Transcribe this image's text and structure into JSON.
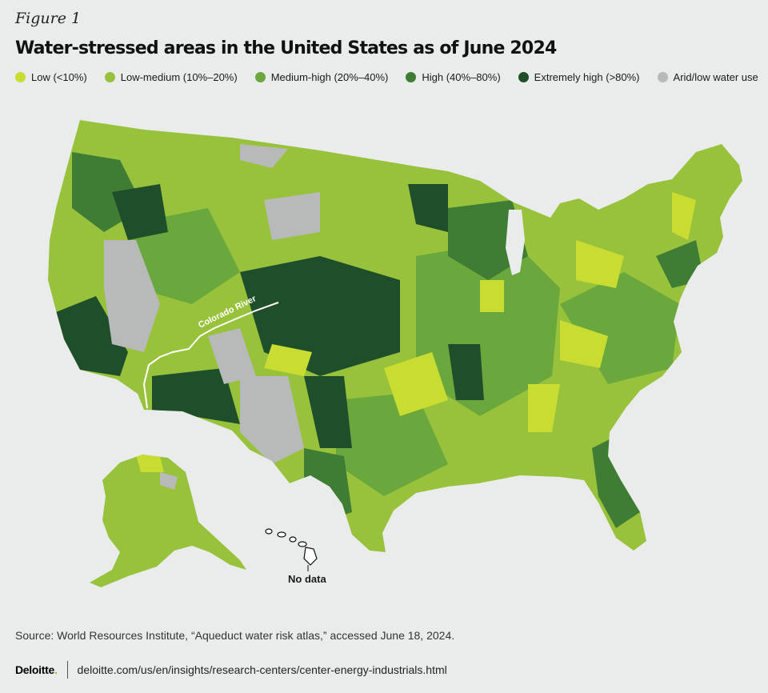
{
  "figure_label": "Figure 1",
  "title": "Water-stressed areas in the United States as of June 2024",
  "legend": [
    {
      "label": "Low (<10%)",
      "color": "#c8dc32"
    },
    {
      "label": "Low-medium (10%–20%)",
      "color": "#98c23c"
    },
    {
      "label": "Medium-high (20%–40%)",
      "color": "#6aa83e"
    },
    {
      "label": "High (40%–80%)",
      "color": "#3f7d35"
    },
    {
      "label": "Extremely high (>80%)",
      "color": "#1f4f2a"
    },
    {
      "label": "Arid/low water use",
      "color": "#b8b9b9"
    }
  ],
  "map": {
    "river_label": "Colorado River",
    "hawaii_label": "No data",
    "background_color": "#eaecec"
  },
  "source": "Source: World Resources Institute, “Aqueduct water risk atlas,” accessed June 18, 2024.",
  "footer": {
    "brand": "Deloitte",
    "brand_dot": ".",
    "url": "deloitte.com/us/en/insights/research-centers/center-energy-industrials.html"
  }
}
